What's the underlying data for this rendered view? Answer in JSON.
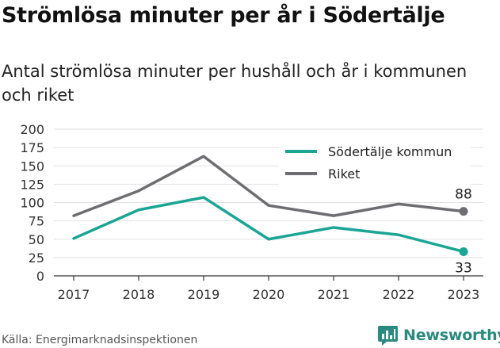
{
  "header": {
    "title": "Strömlösa minuter per år i Södertälje",
    "subtitle": "Antal strömlösa minuter per hushåll och år i kommunen och riket"
  },
  "footer": {
    "source": "Källa: Energimarknadsinspektionen",
    "brand": "Newsworthy",
    "brand_icon": "newsworthy-logo-icon"
  },
  "chart_data": {
    "type": "line",
    "x": [
      "2017",
      "2018",
      "2019",
      "2020",
      "2021",
      "2022",
      "2023"
    ],
    "yticks": [
      "0",
      "25",
      "50",
      "75",
      "100",
      "125",
      "150",
      "175",
      "200"
    ],
    "ylim": [
      0,
      200
    ],
    "grid": true,
    "legend_position": "top-right",
    "series": [
      {
        "name": "Södertälje kommun",
        "color": "#1aa595",
        "values": [
          51,
          90,
          107,
          50,
          66,
          56,
          33
        ],
        "end_label": "33"
      },
      {
        "name": "Riket",
        "color": "#6e6e72",
        "values": [
          82,
          116,
          163,
          96,
          82,
          98,
          88
        ],
        "end_label": "88"
      }
    ]
  }
}
